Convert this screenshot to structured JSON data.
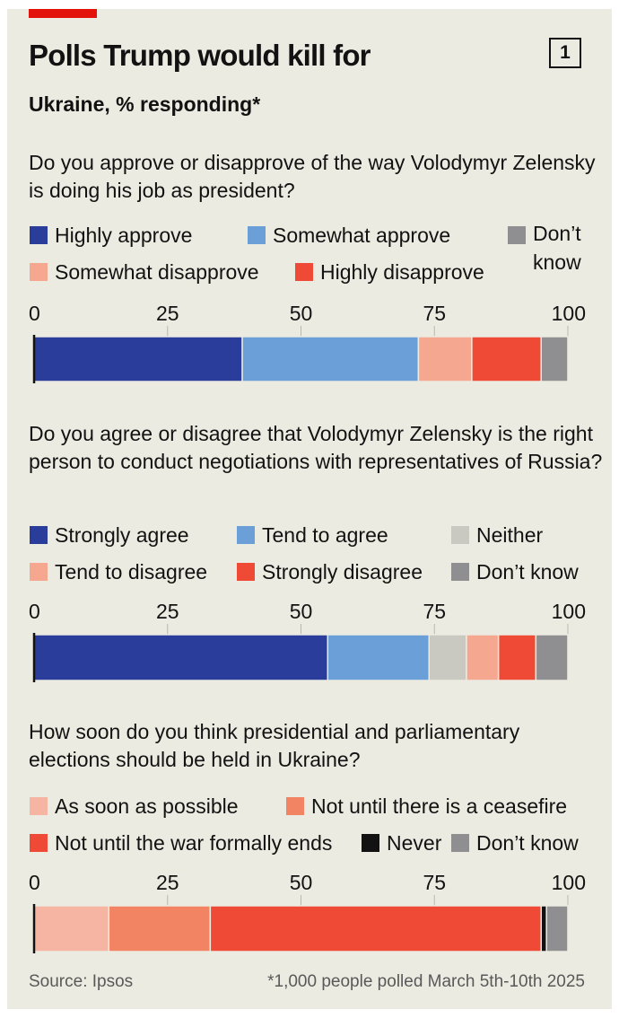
{
  "header": {
    "title": "Polls Trump would kill for",
    "badge": "1",
    "subtitle": "Ukraine, % responding*"
  },
  "colors": {
    "background": "#ecebe1",
    "accent_tag": "#e3120b"
  },
  "chart_data": [
    {
      "type": "bar",
      "orientation": "horizontal",
      "stacked": true,
      "title": "Do you approve or disapprove of the way Volodymyr Zelensky is doing his job as president?",
      "xlim": [
        0,
        100
      ],
      "xticks": [
        "0",
        "25",
        "50",
        "75",
        "100"
      ],
      "legend": [
        {
          "name": "Highly approve",
          "color": "#2a3d9a"
        },
        {
          "name": "Somewhat approve",
          "color": "#6a9fd8"
        },
        {
          "name": "Don’t know",
          "color": "#8f8f91"
        },
        {
          "name": "Somewhat disapprove",
          "color": "#f5a88f"
        },
        {
          "name": "Highly disapprove",
          "color": "#ef4a35"
        }
      ],
      "series": [
        {
          "name": "Highly approve",
          "value": 39,
          "color": "#2a3d9a"
        },
        {
          "name": "Somewhat approve",
          "value": 33,
          "color": "#6a9fd8"
        },
        {
          "name": "Somewhat disapprove",
          "value": 10,
          "color": "#f5a88f"
        },
        {
          "name": "Highly disapprove",
          "value": 13,
          "color": "#ef4a35"
        },
        {
          "name": "Don’t know",
          "value": 5,
          "color": "#8f8f91"
        }
      ]
    },
    {
      "type": "bar",
      "orientation": "horizontal",
      "stacked": true,
      "title": "Do you agree or disagree that Volodymyr Zelensky is the right person to conduct negotiations with representatives of Russia?",
      "xlim": [
        0,
        100
      ],
      "xticks": [
        "0",
        "25",
        "50",
        "75",
        "100"
      ],
      "legend": [
        {
          "name": "Strongly agree",
          "color": "#2a3d9a"
        },
        {
          "name": "Tend to agree",
          "color": "#6a9fd8"
        },
        {
          "name": "Neither",
          "color": "#c9c9c2"
        },
        {
          "name": "Tend to disagree",
          "color": "#f5a88f"
        },
        {
          "name": "Strongly disagree",
          "color": "#ef4a35"
        },
        {
          "name": "Don’t know",
          "color": "#8f8f91"
        }
      ],
      "series": [
        {
          "name": "Strongly agree",
          "value": 55,
          "color": "#2a3d9a"
        },
        {
          "name": "Tend to agree",
          "value": 19,
          "color": "#6a9fd8"
        },
        {
          "name": "Neither",
          "value": 7,
          "color": "#c9c9c2"
        },
        {
          "name": "Tend to disagree",
          "value": 6,
          "color": "#f5a88f"
        },
        {
          "name": "Strongly disagree",
          "value": 7,
          "color": "#ef4a35"
        },
        {
          "name": "Don’t know",
          "value": 6,
          "color": "#8f8f91"
        }
      ]
    },
    {
      "type": "bar",
      "orientation": "horizontal",
      "stacked": true,
      "title": "How soon do you think presidential and parliamentary elections should be held in Ukraine?",
      "xlim": [
        0,
        100
      ],
      "xticks": [
        "0",
        "25",
        "50",
        "75",
        "100"
      ],
      "legend": [
        {
          "name": "As soon as possible",
          "color": "#f5b5a2"
        },
        {
          "name": "Not until there is a ceasefire",
          "color": "#f38463"
        },
        {
          "name": "Not until the war formally ends",
          "color": "#ef4a35"
        },
        {
          "name": "Never",
          "color": "#121212"
        },
        {
          "name": "Don’t know",
          "color": "#8f8f91"
        }
      ],
      "series": [
        {
          "name": "As soon as possible",
          "value": 14,
          "color": "#f5b5a2"
        },
        {
          "name": "Not until there is a ceasefire",
          "value": 19,
          "color": "#f38463"
        },
        {
          "name": "Not until the war formally ends",
          "value": 62,
          "color": "#ef4a35"
        },
        {
          "name": "Never",
          "value": 1,
          "color": "#121212"
        },
        {
          "name": "Don’t know",
          "value": 4,
          "color": "#8f8f91"
        }
      ]
    }
  ],
  "footer": {
    "source": "Source: Ipsos",
    "note": "*1,000 people polled March 5th-10th 2025"
  }
}
